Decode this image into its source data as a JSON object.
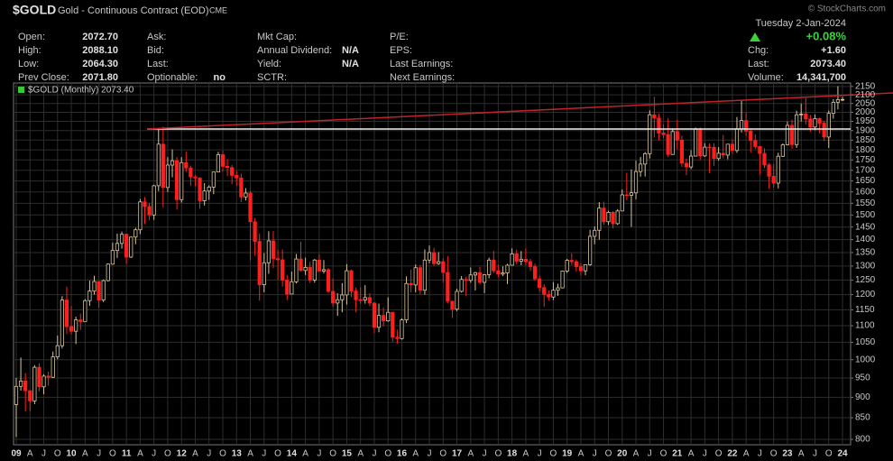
{
  "header": {
    "symbol": "$GOLD",
    "name": "Gold - Continuous Contract (EOD)",
    "exchange": "CME",
    "watermark": "© StockCharts.com",
    "date": "Tuesday 2-Jan-2024",
    "columns": [
      [
        {
          "label": "Open:",
          "value": "2072.70"
        },
        {
          "label": "High:",
          "value": "2088.10"
        },
        {
          "label": "Low:",
          "value": "2064.30"
        },
        {
          "label": "Prev Close:",
          "value": "2071.80"
        }
      ],
      [
        {
          "label": "Ask:"
        },
        {
          "label": "Bid:"
        },
        {
          "label": "Last:"
        },
        {
          "label": "Optionable:",
          "value": "no"
        }
      ],
      [
        {
          "label": "Mkt Cap:"
        },
        {
          "label": "Annual Dividend:",
          "value": "N/A"
        },
        {
          "label": "Yield:",
          "value": "N/A"
        },
        {
          "label": "SCTR:"
        }
      ],
      [
        {
          "label": "P/E:"
        },
        {
          "label": "EPS:"
        },
        {
          "label": "Last Earnings:"
        },
        {
          "label": "Next Earnings:"
        }
      ],
      [
        {
          "value": "+0.08%"
        },
        {
          "label": "Chg:",
          "value": "+1.60"
        },
        {
          "label": "Last:",
          "value": "2073.40"
        },
        {
          "label": "Volume:",
          "value": "14,341,700"
        }
      ]
    ]
  },
  "chart_data": {
    "type": "candlestick",
    "legend_label": "$GOLD (Monthly) 2073.40",
    "up_color": "#d9c79e",
    "down_color": "#ff1f1f",
    "log_scale": true,
    "grid": true,
    "ylim": [
      788,
      2171
    ],
    "yticks": [
      800,
      850,
      900,
      950,
      1000,
      1050,
      1100,
      1150,
      1200,
      1250,
      1300,
      1350,
      1400,
      1450,
      1500,
      1550,
      1600,
      1650,
      1700,
      1750,
      1800,
      1850,
      1900,
      1950,
      2000,
      2050,
      2100,
      2150
    ],
    "categories": [
      "09",
      null,
      null,
      "A",
      null,
      null,
      "J",
      null,
      null,
      "O",
      null,
      null,
      "10",
      null,
      null,
      "A",
      null,
      null,
      "J",
      null,
      null,
      "O",
      null,
      null,
      "11",
      null,
      null,
      "A",
      null,
      null,
      "J",
      null,
      null,
      "O",
      null,
      null,
      "12",
      null,
      null,
      "A",
      null,
      null,
      "J",
      null,
      null,
      "O",
      null,
      null,
      "13",
      null,
      null,
      "A",
      null,
      null,
      "J",
      null,
      null,
      "O",
      null,
      null,
      "14",
      null,
      null,
      "A",
      null,
      null,
      "J",
      null,
      null,
      "O",
      null,
      null,
      "15",
      null,
      null,
      "A",
      null,
      null,
      "J",
      null,
      null,
      "O",
      null,
      null,
      "16",
      null,
      null,
      "A",
      null,
      null,
      "J",
      null,
      null,
      "O",
      null,
      null,
      "17",
      null,
      null,
      "A",
      null,
      null,
      "J",
      null,
      null,
      "O",
      null,
      null,
      "18",
      null,
      null,
      "A",
      null,
      null,
      "J",
      null,
      null,
      "O",
      null,
      null,
      "19",
      null,
      null,
      "A",
      null,
      null,
      "J",
      null,
      null,
      "O",
      null,
      null,
      "20",
      null,
      null,
      "A",
      null,
      null,
      "J",
      null,
      null,
      "O",
      null,
      null,
      "21",
      null,
      null,
      "A",
      null,
      null,
      "J",
      null,
      null,
      "O",
      null,
      null,
      "22",
      null,
      null,
      "A",
      null,
      null,
      "J",
      null,
      null,
      "O",
      null,
      null,
      "23",
      null,
      null,
      "A",
      null,
      null,
      "J",
      null,
      null,
      "O",
      null,
      null,
      "24"
    ],
    "open": [
      882,
      928,
      942,
      917,
      891,
      979,
      927,
      955,
      952,
      1008,
      1040,
      1182,
      1097,
      1083,
      1118,
      1113,
      1180,
      1212,
      1245,
      1182,
      1248,
      1307,
      1358,
      1385,
      1421,
      1333,
      1410,
      1439,
      1556,
      1536,
      1500,
      1628,
      1829,
      1620,
      1725,
      1746,
      1566,
      1737,
      1711,
      1669,
      1664,
      1561,
      1604,
      1622,
      1692,
      1776,
      1719,
      1713,
      1676,
      1664,
      1578,
      1595,
      1472,
      1393,
      1234,
      1312,
      1395,
      1327,
      1323,
      1250,
      1202,
      1244,
      1326,
      1284,
      1295,
      1250,
      1322,
      1282,
      1287,
      1211,
      1172,
      1183,
      1199,
      1283,
      1212,
      1183,
      1182,
      1190,
      1172,
      1095,
      1132,
      1115,
      1142,
      1065,
      1061,
      1118,
      1238,
      1233,
      1294,
      1215,
      1322,
      1350,
      1309,
      1316,
      1277,
      1178,
      1152,
      1211,
      1252,
      1249,
      1268,
      1276,
      1242,
      1269,
      1322,
      1283,
      1271,
      1275,
      1303,
      1345,
      1318,
      1325,
      1316,
      1298,
      1254,
      1224,
      1201,
      1192,
      1215,
      1223,
      1282,
      1321,
      1316,
      1298,
      1283,
      1305,
      1413,
      1437,
      1529,
      1472,
      1511,
      1464,
      1517,
      1587,
      1585,
      1596,
      1694,
      1730,
      1781,
      1986,
      1968,
      1887,
      1879,
      1777,
      1895,
      1850,
      1734,
      1716,
      1769,
      1907,
      1770,
      1814,
      1813,
      1757,
      1783,
      1774,
      1829,
      1797,
      1909,
      1954,
      1897,
      1848,
      1817,
      1782,
      1726,
      1672,
      1640,
      1768,
      1826,
      1928,
      1827,
      1986,
      1990,
      1963,
      1919,
      1965,
      1940,
      1866,
      1994,
      2057,
      2072.7
    ],
    "high": [
      950,
      1006,
      963,
      918,
      985,
      990,
      960,
      967,
      1023,
      1070,
      1195,
      1227,
      1163,
      1128,
      1138,
      1185,
      1248,
      1265,
      1245,
      1252,
      1310,
      1388,
      1424,
      1432,
      1424,
      1412,
      1447,
      1569,
      1577,
      1552,
      1632,
      1913,
      1921,
      1764,
      1803,
      1764,
      1764,
      1791,
      1722,
      1677,
      1667,
      1640,
      1630,
      1693,
      1790,
      1796,
      1754,
      1725,
      1696,
      1684,
      1617,
      1605,
      1488,
      1424,
      1348,
      1433,
      1434,
      1361,
      1362,
      1268,
      1280,
      1345,
      1392,
      1331,
      1315,
      1326,
      1345,
      1322,
      1292,
      1256,
      1205,
      1239,
      1307,
      1287,
      1224,
      1225,
      1232,
      1205,
      1175,
      1170,
      1157,
      1191,
      1142,
      1088,
      1123,
      1263,
      1287,
      1306,
      1304,
      1362,
      1377,
      1368,
      1352,
      1328,
      1337,
      1180,
      1220,
      1264,
      1262,
      1295,
      1279,
      1297,
      1271,
      1331,
      1357,
      1306,
      1299,
      1308,
      1366,
      1361,
      1356,
      1366,
      1326,
      1309,
      1265,
      1236,
      1214,
      1243,
      1237,
      1284,
      1326,
      1347,
      1324,
      1310,
      1306,
      1439,
      1453,
      1555,
      1557,
      1518,
      1516,
      1525,
      1611,
      1689,
      1704,
      1747,
      1765,
      1789,
      2011,
      2089,
      1992,
      1933,
      1966,
      1906,
      1959,
      1872,
      1757,
      1798,
      1916,
      1917,
      1834,
      1833,
      1834,
      1814,
      1877,
      1831,
      1854,
      1974,
      2070,
      1998,
      1910,
      1880,
      1818,
      1808,
      1735,
      1729,
      1786,
      1833,
      1949,
      1959,
      2009,
      2049,
      2082,
      1984,
      1987,
      1970,
      1953,
      2010,
      2075,
      2152,
      2088.1
    ],
    "low": [
      805,
      917,
      865,
      866,
      883,
      915,
      908,
      930,
      950,
      1001,
      1032,
      1075,
      1073,
      1045,
      1087,
      1113,
      1163,
      1200,
      1157,
      1175,
      1245,
      1305,
      1330,
      1365,
      1308,
      1330,
      1382,
      1422,
      1462,
      1478,
      1480,
      1604,
      1532,
      1600,
      1667,
      1523,
      1553,
      1692,
      1627,
      1626,
      1527,
      1540,
      1565,
      1590,
      1692,
      1694,
      1672,
      1635,
      1627,
      1555,
      1562,
      1321,
      1338,
      1180,
      1208,
      1272,
      1293,
      1251,
      1227,
      1182,
      1202,
      1238,
      1280,
      1268,
      1240,
      1241,
      1281,
      1273,
      1206,
      1160,
      1131,
      1142,
      1167,
      1192,
      1142,
      1170,
      1170,
      1162,
      1077,
      1080,
      1098,
      1112,
      1052,
      1046,
      1058,
      1108,
      1208,
      1208,
      1200,
      1200,
      1310,
      1300,
      1304,
      1241,
      1171,
      1124,
      1146,
      1207,
      1195,
      1241,
      1214,
      1236,
      1205,
      1256,
      1274,
      1260,
      1264,
      1236,
      1302,
      1307,
      1303,
      1303,
      1282,
      1247,
      1211,
      1160,
      1180,
      1182,
      1196,
      1221,
      1275,
      1303,
      1280,
      1266,
      1267,
      1301,
      1382,
      1400,
      1459,
      1459,
      1445,
      1459,
      1517,
      1564,
      1451,
      1567,
      1670,
      1671,
      1757,
      1863,
      1849,
      1860,
      1765,
      1775,
      1803,
      1717,
      1677,
      1706,
      1767,
      1751,
      1765,
      1687,
      1721,
      1747,
      1758,
      1753,
      1780,
      1785,
      1890,
      1872,
      1787,
      1805,
      1681,
      1710,
      1615,
      1618,
      1616,
      1765,
      1824,
      1805,
      1810,
      1949,
      1932,
      1893,
      1902,
      1885,
      1846,
      1810,
      1965,
      2016,
      2064.3
    ],
    "close": [
      928,
      942,
      917,
      891,
      979,
      927,
      955,
      952,
      1008,
      1040,
      1182,
      1097,
      1083,
      1118,
      1113,
      1180,
      1212,
      1245,
      1182,
      1248,
      1307,
      1358,
      1385,
      1421,
      1333,
      1410,
      1439,
      1556,
      1536,
      1500,
      1628,
      1829,
      1620,
      1725,
      1746,
      1566,
      1737,
      1711,
      1669,
      1664,
      1561,
      1604,
      1622,
      1692,
      1776,
      1719,
      1713,
      1676,
      1664,
      1578,
      1595,
      1472,
      1393,
      1234,
      1312,
      1395,
      1327,
      1323,
      1250,
      1202,
      1244,
      1326,
      1284,
      1295,
      1250,
      1322,
      1282,
      1287,
      1211,
      1172,
      1183,
      1199,
      1283,
      1212,
      1183,
      1182,
      1190,
      1172,
      1095,
      1132,
      1115,
      1142,
      1065,
      1061,
      1118,
      1238,
      1233,
      1294,
      1215,
      1322,
      1350,
      1309,
      1316,
      1277,
      1178,
      1152,
      1211,
      1252,
      1249,
      1268,
      1276,
      1242,
      1269,
      1322,
      1283,
      1271,
      1275,
      1303,
      1345,
      1318,
      1325,
      1316,
      1298,
      1254,
      1224,
      1201,
      1192,
      1215,
      1223,
      1282,
      1321,
      1316,
      1298,
      1283,
      1305,
      1413,
      1437,
      1529,
      1472,
      1511,
      1464,
      1517,
      1587,
      1585,
      1596,
      1694,
      1730,
      1781,
      1986,
      1968,
      1887,
      1879,
      1777,
      1895,
      1850,
      1734,
      1716,
      1769,
      1907,
      1770,
      1814,
      1813,
      1757,
      1783,
      1774,
      1829,
      1797,
      1909,
      1954,
      1897,
      1848,
      1817,
      1782,
      1726,
      1672,
      1640,
      1768,
      1826,
      1928,
      1827,
      1986,
      1990,
      1963,
      1919,
      1965,
      1940,
      1866,
      1994,
      2057,
      2072,
      2073.4
    ]
  }
}
